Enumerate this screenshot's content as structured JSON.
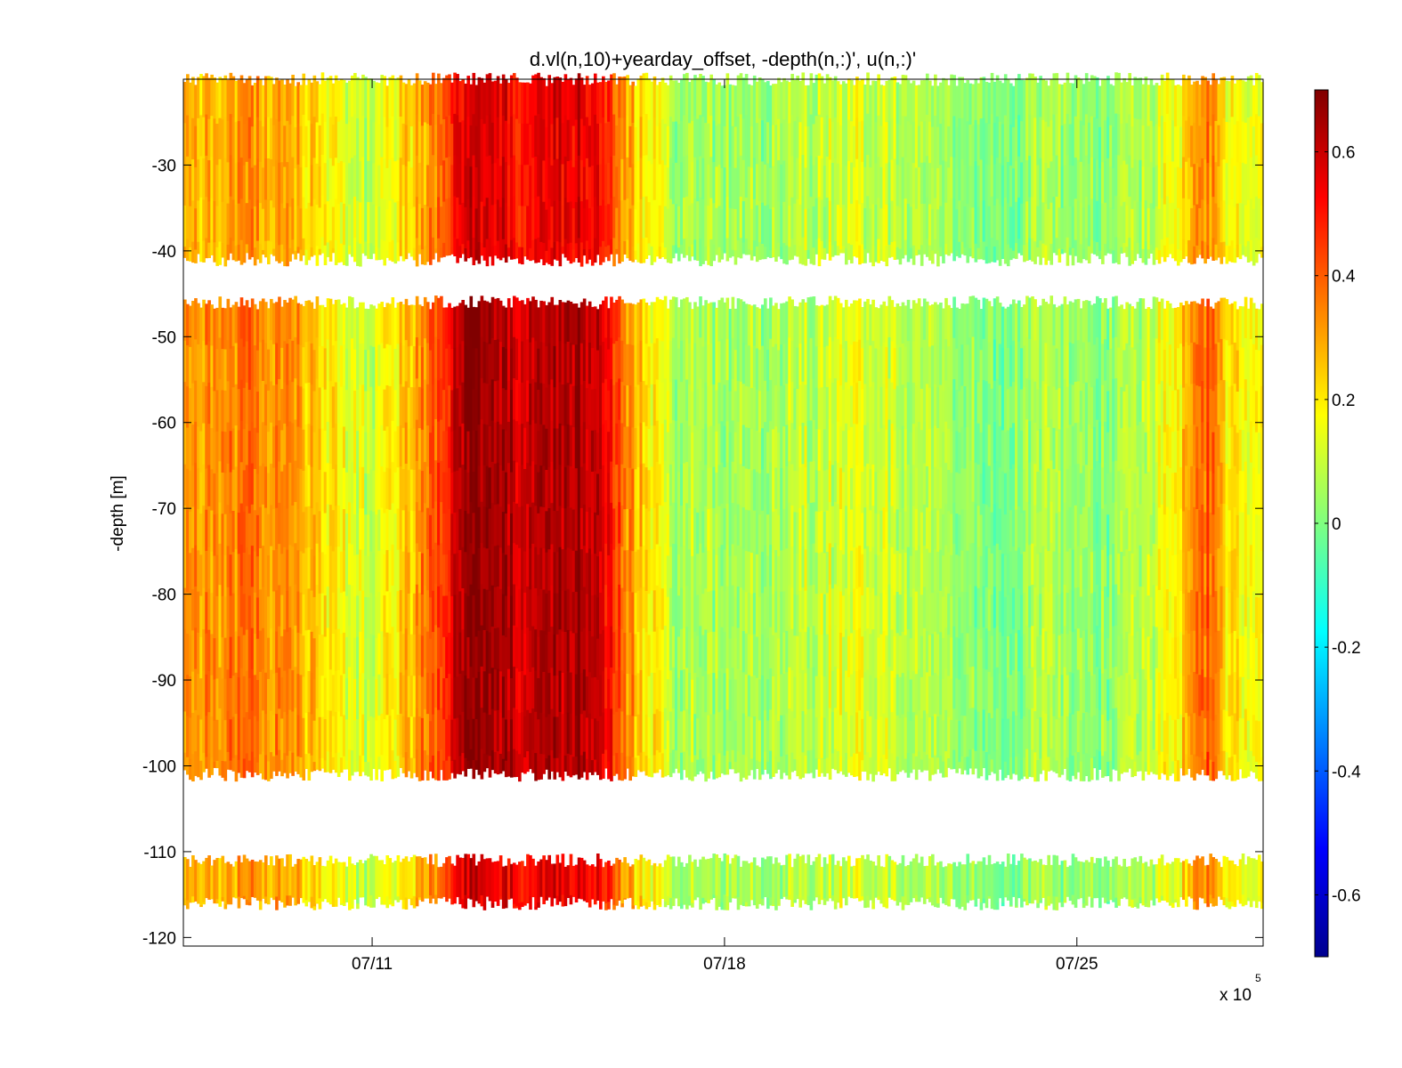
{
  "chart_data": {
    "type": "heatmap",
    "title": "d.vl(n,10)+yearday_offset, -depth(n,:)', u(n,:)'",
    "ylabel": "-depth [m]",
    "xlabel": "",
    "x_exponent_label": "x 10",
    "x_exponent_power": "5",
    "x_ticks": [
      "07/11",
      "07/18",
      "07/25"
    ],
    "x_range_days": [
      7.25,
      28.7
    ],
    "x_tick_days": [
      11,
      18,
      25
    ],
    "y_ticks": [
      -30,
      -40,
      -50,
      -60,
      -70,
      -80,
      -90,
      -100,
      -110,
      -120
    ],
    "ylim": [
      -121,
      -20
    ],
    "colorbar": {
      "colormap": "jet",
      "clim": [
        -0.7,
        0.7
      ],
      "ticks": [
        0.6,
        0.4,
        0.2,
        0,
        -0.2,
        -0.4,
        -0.6
      ],
      "tick_labels": [
        "0.6",
        "0.4",
        "0.2",
        "0",
        "-0.2",
        "-0.4",
        "-0.6"
      ]
    },
    "depth_bands": [
      {
        "top": -20,
        "bottom": -41
      },
      {
        "top": -46,
        "bottom": -101
      },
      {
        "top": -111,
        "bottom": -116
      }
    ],
    "u_profile_knots": {
      "day": [
        7.3,
        8.4,
        9.4,
        10.3,
        11.0,
        12.3,
        12.9,
        13.6,
        14.2,
        15.1,
        15.7,
        16.1,
        17.0,
        18.5,
        19.5,
        20.7,
        21.9,
        23.4,
        24.3,
        25.3,
        26.5,
        27.2,
        27.6,
        28.0,
        28.6
      ],
      "u": [
        0.25,
        0.32,
        0.28,
        0.15,
        0.08,
        0.35,
        0.62,
        0.55,
        0.5,
        0.58,
        0.45,
        0.28,
        0.06,
        0.04,
        0.08,
        0.12,
        0.06,
        -0.02,
        0.05,
        0.0,
        0.08,
        0.22,
        0.36,
        0.18,
        0.16
      ]
    }
  }
}
